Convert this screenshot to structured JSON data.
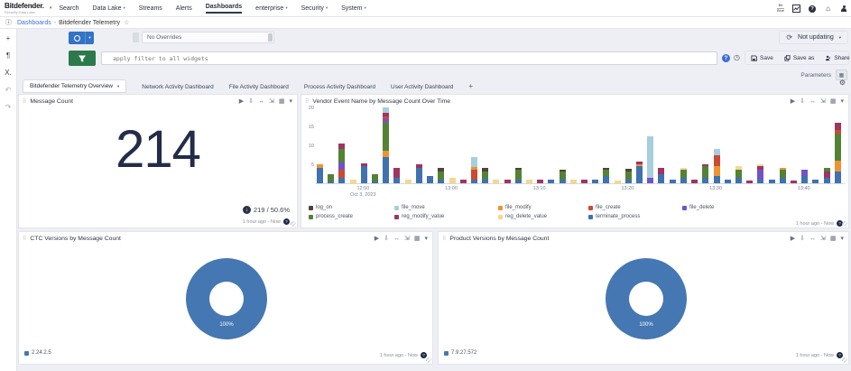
{
  "topnav": {
    "logo": {
      "name": "Bitdefender.",
      "tagline": "Security Data Lake"
    },
    "items": [
      {
        "label": "Search",
        "caret": false,
        "active": false
      },
      {
        "label": "Data Lake",
        "caret": true,
        "active": false
      },
      {
        "label": "Streams",
        "caret": false,
        "active": false
      },
      {
        "label": "Alerts",
        "caret": false,
        "active": false
      },
      {
        "label": "Dashboards",
        "caret": false,
        "active": true
      },
      {
        "label": "enterprise",
        "caret": true,
        "active": false
      },
      {
        "label": "Security",
        "caret": true,
        "active": false
      },
      {
        "label": "System",
        "caret": true,
        "active": false
      }
    ],
    "metric": {
      "top": "Bit",
      "bottom": "Blue"
    },
    "help_label": "?"
  },
  "breadcrumb": {
    "link": "Dashboards",
    "sep": "-",
    "current": "Bitdefender Telemetry"
  },
  "rail": {
    "icons": [
      {
        "name": "add-icon",
        "glyph": "+",
        "dim": false
      },
      {
        "name": "text-panel-icon",
        "glyph": "¶",
        "dim": false
      },
      {
        "name": "variables-icon",
        "glyph": "X.",
        "dim": false
      },
      {
        "name": "undo-icon",
        "glyph": "↶",
        "dim": true
      },
      {
        "name": "redo-icon",
        "glyph": "↷",
        "dim": true
      }
    ]
  },
  "toolbar": {
    "override_value": "No Overrides",
    "filter_placeholder": "apply filter to all widgets",
    "not_updating_label": "Not updating",
    "save_label": "Save",
    "save_as_label": "Save as",
    "share_label": "Share",
    "more_label": "…",
    "parameters_label": "Parameters",
    "help_label": "?"
  },
  "tabs": {
    "items": [
      {
        "label": "Bitdefender Telemetry Overview",
        "active": true
      },
      {
        "label": "Network Activity Dashboard",
        "active": false
      },
      {
        "label": "File Activity Dashboard",
        "active": false
      },
      {
        "label": "Process Activity Dashboard",
        "active": false
      },
      {
        "label": "User Activity Dashboard",
        "active": false
      }
    ],
    "add_label": "+"
  },
  "widget_toolbar": {
    "icons": [
      {
        "name": "run-icon",
        "glyph": "▶"
      },
      {
        "name": "export-icon",
        "glyph": "⇩"
      },
      {
        "name": "fit-width-icon",
        "glyph": "↔"
      },
      {
        "name": "expand-icon",
        "glyph": "⇲"
      },
      {
        "name": "chart-type-icon",
        "glyph": "▦"
      },
      {
        "name": "widget-menu-icon",
        "glyph": "▾"
      }
    ]
  },
  "panels": {
    "message_count": {
      "title": "Message Count",
      "value": "214",
      "trend": "219 / 50.6%",
      "time_range": "1 hour ago - Now"
    },
    "vendor": {
      "title": "Vendor Event Name by Message Count Over Time",
      "time_range": "1 hour ago - Now",
      "chart_data": {
        "type": "bar",
        "stacked": true,
        "title": "Vendor Event Name by Message Count Over Time",
        "xlabel": "",
        "ylabel": "",
        "ylim": [
          0,
          20
        ],
        "yticks": [
          5,
          10,
          15,
          20
        ],
        "grid": false,
        "legend_position": "bottom",
        "legend_order": [
          "log_on",
          "file_move",
          "file_modify",
          "file_create",
          "file_delete",
          "process_create",
          "reg_modify_value",
          "reg_delete_value",
          "terminate_process"
        ],
        "series_colors": {
          "log_on": "#4f4239",
          "file_move": "#a6cede",
          "file_modify": "#ee9331",
          "file_create": "#cb4a33",
          "file_delete": "#7253c5",
          "process_create": "#538234",
          "reg_modify_value": "#9e3563",
          "reg_delete_value": "#f7d78c",
          "terminate_process": "#3f72ae"
        },
        "xticks": [
          {
            "index": 4,
            "label": "12:50",
            "sublabel": "Oct 3, 2023"
          },
          {
            "index": 12,
            "label": "13:00",
            "sublabel": ""
          },
          {
            "index": 20,
            "label": "13:10",
            "sublabel": ""
          },
          {
            "index": 28,
            "label": "13:20",
            "sublabel": ""
          },
          {
            "index": 36,
            "label": "13:30",
            "sublabel": ""
          },
          {
            "index": 44,
            "label": "13:40",
            "sublabel": ""
          }
        ],
        "bars": [
          [
            [
              "terminate_process",
              4
            ],
            [
              "file_modify",
              1
            ]
          ],
          [
            [
              "terminate_process",
              0.5
            ],
            [
              "process_create",
              2
            ]
          ],
          [
            [
              "terminate_process",
              1.5
            ],
            [
              "file_create",
              2
            ],
            [
              "file_delete",
              2
            ],
            [
              "process_create",
              3.5
            ],
            [
              "reg_modify_value",
              1.5
            ]
          ],
          [
            [
              "reg_delete_value",
              1
            ]
          ],
          [
            [
              "terminate_process",
              4.5
            ],
            [
              "reg_modify_value",
              0.7
            ]
          ],
          [
            [
              "terminate_process",
              0.5
            ],
            [
              "process_create",
              2
            ]
          ],
          [
            [
              "terminate_process",
              7
            ],
            [
              "file_modify",
              1.5
            ],
            [
              "process_create",
              7.5
            ],
            [
              "file_delete",
              1
            ],
            [
              "file_create",
              0.7
            ],
            [
              "reg_modify_value",
              1
            ],
            [
              "file_move",
              1.3
            ]
          ],
          [
            [
              "terminate_process",
              1.5
            ],
            [
              "reg_modify_value",
              2.5
            ]
          ],
          [
            [
              "reg_delete_value",
              1
            ]
          ],
          [
            [
              "terminate_process",
              4
            ],
            [
              "reg_modify_value",
              1
            ]
          ],
          [
            [
              "terminate_process",
              2
            ]
          ],
          [
            [
              "terminate_process",
              1
            ],
            [
              "process_create",
              2.2
            ],
            [
              "log_on",
              0.8
            ]
          ],
          [
            [
              "reg_delete_value",
              1.5
            ]
          ],
          [
            [
              "reg_modify_value",
              1
            ]
          ],
          [
            [
              "terminate_process",
              1
            ],
            [
              "file_create",
              2.5
            ],
            [
              "file_modify",
              0.7
            ],
            [
              "file_move",
              2.8
            ]
          ],
          [
            [
              "terminate_process",
              1.2
            ],
            [
              "process_create",
              2
            ],
            [
              "log_on",
              0.8
            ]
          ],
          [
            [
              "reg_delete_value",
              1
            ]
          ],
          [
            [
              "reg_modify_value",
              1
            ]
          ],
          [
            [
              "terminate_process",
              1
            ],
            [
              "process_create",
              2.5
            ],
            [
              "log_on",
              0.5
            ]
          ],
          [
            [
              "reg_delete_value",
              1
            ]
          ],
          [
            [
              "reg_modify_value",
              1
            ]
          ],
          [
            [
              "terminate_process",
              1
            ]
          ],
          [
            [
              "terminate_process",
              1
            ],
            [
              "process_create",
              2
            ],
            [
              "log_on",
              0.5
            ]
          ],
          [
            [
              "reg_delete_value",
              1
            ]
          ],
          [
            [
              "reg_modify_value",
              1
            ]
          ],
          [
            [
              "terminate_process",
              1
            ]
          ],
          [
            [
              "terminate_process",
              2
            ],
            [
              "process_create",
              1.5
            ],
            [
              "log_on",
              0.5
            ]
          ],
          [
            [
              "reg_delete_value",
              0.8
            ]
          ],
          [
            [
              "terminate_process",
              1
            ],
            [
              "process_create",
              2
            ],
            [
              "log_on",
              0.8
            ]
          ],
          [
            [
              "terminate_process",
              4.5
            ],
            [
              "file_modify",
              0.5
            ],
            [
              "reg_modify_value",
              0.8
            ]
          ],
          [
            [
              "file_delete",
              1.5
            ],
            [
              "file_move",
              11
            ]
          ],
          [
            [
              "terminate_process",
              2.5
            ],
            [
              "reg_modify_value",
              1.5
            ]
          ],
          [
            [
              "terminate_process",
              1
            ]
          ],
          [
            [
              "terminate_process",
              1.5
            ],
            [
              "process_create",
              2
            ],
            [
              "reg_delete_value",
              0.5
            ]
          ],
          [
            [
              "reg_modify_value",
              1
            ]
          ],
          [
            [
              "terminate_process",
              1.5
            ],
            [
              "process_create",
              3
            ],
            [
              "reg_modify_value",
              0.5
            ]
          ],
          [
            [
              "terminate_process",
              2
            ],
            [
              "file_modify",
              2.5
            ],
            [
              "file_create",
              3
            ],
            [
              "file_move",
              1.5
            ]
          ],
          [
            [
              "terminate_process",
              1
            ]
          ],
          [
            [
              "terminate_process",
              1.5
            ],
            [
              "process_create",
              2
            ],
            [
              "reg_delete_value",
              1
            ]
          ],
          [
            [
              "reg_modify_value",
              0.8
            ]
          ],
          [
            [
              "terminate_process",
              1
            ],
            [
              "file_delete",
              2.5
            ],
            [
              "reg_modify_value",
              1
            ],
            [
              "reg_delete_value",
              0.5
            ]
          ],
          [
            [
              "terminate_process",
              1
            ]
          ],
          [
            [
              "terminate_process",
              1.5
            ],
            [
              "process_create",
              2
            ],
            [
              "file_modify",
              0.5
            ]
          ],
          [
            [
              "reg_modify_value",
              0.8
            ]
          ],
          [
            [
              "terminate_process",
              2
            ],
            [
              "file_delete",
              1.5
            ]
          ],
          [
            [
              "terminate_process",
              1
            ]
          ],
          [
            [
              "terminate_process",
              1.5
            ],
            [
              "reg_modify_value",
              1.5
            ],
            [
              "process_create",
              1
            ]
          ],
          [
            [
              "terminate_process",
              3
            ],
            [
              "file_modify",
              3
            ],
            [
              "process_create",
              7
            ],
            [
              "file_create",
              1
            ],
            [
              "reg_modify_value",
              2
            ]
          ]
        ]
      }
    },
    "ctc": {
      "title": "CTC Versions by Message Count",
      "time_range": "1 hour ago - Now",
      "center_label": "100%",
      "chart_data": {
        "type": "pie",
        "donut": true,
        "slices": [
          {
            "label": "2.24.2.5",
            "value": 100,
            "color": "#4577b3"
          }
        ],
        "data_label": "100%"
      }
    },
    "product": {
      "title": "Product Versions by Message Count",
      "time_range": "1 hour ago - Now",
      "center_label": "100%",
      "chart_data": {
        "type": "pie",
        "donut": true,
        "slices": [
          {
            "label": "7.9.27.572",
            "value": 100,
            "color": "#4577b3"
          }
        ],
        "data_label": "100%"
      }
    }
  }
}
